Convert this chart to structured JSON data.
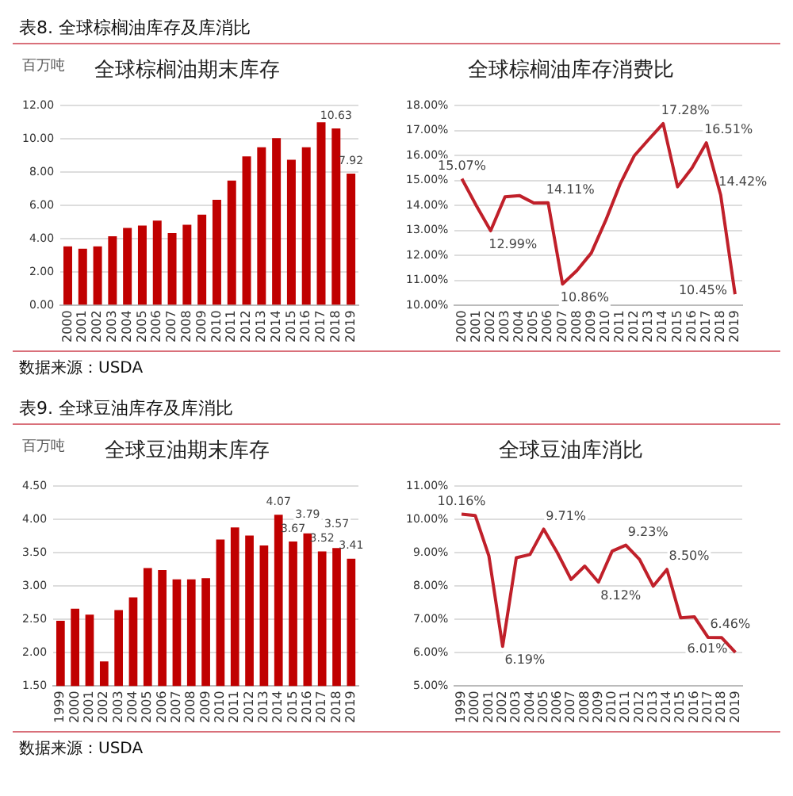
{
  "chart_data": [
    {
      "type": "bar",
      "title": "全球棕榈油期末库存",
      "ylabel": "百万吨",
      "annotations": [
        "表8.  全球棕榈油库存及库消比",
        "数据来源：USDA"
      ],
      "categories": [
        "2000",
        "2001",
        "2002",
        "2003",
        "2004",
        "2005",
        "2006",
        "2007",
        "2008",
        "2009",
        "2010",
        "2011",
        "2012",
        "2013",
        "2014",
        "2015",
        "2016",
        "2017",
        "2018",
        "2019"
      ],
      "values": [
        3.55,
        3.4,
        3.55,
        4.15,
        4.65,
        4.8,
        5.1,
        4.35,
        4.85,
        5.45,
        6.35,
        7.5,
        8.95,
        9.5,
        10.05,
        8.75,
        9.5,
        11.0,
        10.63,
        7.92
      ],
      "value_labels": [
        null,
        null,
        null,
        null,
        null,
        null,
        null,
        null,
        null,
        null,
        null,
        null,
        null,
        null,
        null,
        null,
        null,
        null,
        "10.63",
        "7.92"
      ],
      "color": "#c00000",
      "ylim": [
        0,
        12
      ],
      "yticks": [
        {
          "value": 0,
          "label": "0.00"
        },
        {
          "value": 2,
          "label": "2.00"
        },
        {
          "value": 4,
          "label": "4.00"
        },
        {
          "value": 6,
          "label": "6.00"
        },
        {
          "value": 8,
          "label": "8.00"
        },
        {
          "value": 10,
          "label": "10.00"
        },
        {
          "value": 12,
          "label": "12.00"
        }
      ],
      "grid": "y"
    },
    {
      "type": "line",
      "title": "全球棕榈油库存消费比",
      "categories": [
        "2000",
        "2001",
        "2002",
        "2003",
        "2004",
        "2005",
        "2006",
        "2007",
        "2008",
        "2009",
        "2010",
        "2011",
        "2012",
        "2013",
        "2014",
        "2015",
        "2016",
        "2017",
        "2018",
        "2019"
      ],
      "values": [
        15.07,
        14.0,
        12.99,
        14.35,
        14.4,
        14.1,
        14.11,
        10.86,
        11.4,
        12.1,
        13.4,
        14.85,
        16.0,
        16.65,
        17.28,
        14.75,
        15.5,
        16.51,
        14.42,
        10.45
      ],
      "value_labels": [
        "15.07%",
        null,
        "12.99%",
        null,
        null,
        null,
        "14.11%",
        "10.86%",
        null,
        null,
        null,
        null,
        null,
        null,
        "17.28%",
        null,
        null,
        "16.51%",
        "14.42%",
        "10.45%"
      ],
      "color": "#c0202a",
      "ylim": [
        10,
        18
      ],
      "yticks": [
        {
          "value": 10,
          "label": "10.00%"
        },
        {
          "value": 11,
          "label": "11.00%"
        },
        {
          "value": 12,
          "label": "12.00%"
        },
        {
          "value": 13,
          "label": "13.00%"
        },
        {
          "value": 14,
          "label": "14.00%"
        },
        {
          "value": 15,
          "label": "15.00%"
        },
        {
          "value": 16,
          "label": "16.00%"
        },
        {
          "value": 17,
          "label": "17.00%"
        },
        {
          "value": 18,
          "label": "18.00%"
        }
      ],
      "grid": "y",
      "marker": "none"
    },
    {
      "type": "bar",
      "title": "全球豆油期末库存",
      "ylabel": "百万吨",
      "annotations": [
        "表9.  全球豆油库存及库消比",
        "数据来源：USDA"
      ],
      "categories": [
        "1999",
        "2000",
        "2001",
        "2002",
        "2003",
        "2004",
        "2005",
        "2006",
        "2007",
        "2008",
        "2009",
        "2010",
        "2011",
        "2012",
        "2013",
        "2014",
        "2015",
        "2016",
        "2017",
        "2018",
        "2019"
      ],
      "values": [
        2.48,
        2.66,
        2.57,
        1.87,
        2.64,
        2.83,
        3.27,
        3.24,
        3.1,
        3.1,
        3.12,
        3.7,
        3.88,
        3.76,
        3.61,
        4.07,
        3.67,
        3.79,
        3.52,
        3.57,
        3.41
      ],
      "value_labels": [
        null,
        null,
        null,
        null,
        null,
        null,
        null,
        null,
        null,
        null,
        null,
        null,
        null,
        null,
        null,
        "4.07",
        "3.67",
        "3.79",
        "3.52",
        "3.57",
        "3.41"
      ],
      "color": "#c00000",
      "ylim": [
        1.5,
        4.5
      ],
      "yticks": [
        {
          "value": 1.5,
          "label": "1.50"
        },
        {
          "value": 2,
          "label": "2.00"
        },
        {
          "value": 2.5,
          "label": "2.50"
        },
        {
          "value": 3,
          "label": "3.00"
        },
        {
          "value": 3.5,
          "label": "3.50"
        },
        {
          "value": 4,
          "label": "4.00"
        },
        {
          "value": 4.5,
          "label": "4.50"
        }
      ],
      "grid": "y"
    },
    {
      "type": "line",
      "title": "全球豆油库消比",
      "categories": [
        "1999",
        "2000",
        "2001",
        "2002",
        "2003",
        "2004",
        "2005",
        "2006",
        "2007",
        "2008",
        "2009",
        "2010",
        "2011",
        "2012",
        "2013",
        "2014",
        "2015",
        "2016",
        "2017",
        "2018",
        "2019"
      ],
      "values": [
        10.16,
        10.12,
        8.9,
        6.19,
        8.85,
        8.95,
        9.71,
        9.0,
        8.2,
        8.6,
        8.12,
        9.05,
        9.23,
        8.8,
        8.0,
        8.5,
        7.05,
        7.08,
        6.46,
        6.45,
        6.01
      ],
      "value_labels": [
        "10.16%",
        null,
        null,
        "6.19%",
        null,
        null,
        "9.71%",
        null,
        null,
        null,
        "8.12%",
        null,
        "9.23%",
        null,
        null,
        "8.50%",
        null,
        null,
        "6.46%",
        null,
        "6.01%"
      ],
      "color": "#c0202a",
      "ylim": [
        5,
        11
      ],
      "yticks": [
        {
          "value": 5,
          "label": "5.00%"
        },
        {
          "value": 6,
          "label": "6.00%"
        },
        {
          "value": 7,
          "label": "7.00%"
        },
        {
          "value": 8,
          "label": "8.00%"
        },
        {
          "value": 9,
          "label": "9.00%"
        },
        {
          "value": 10,
          "label": "10.00%"
        },
        {
          "value": 11,
          "label": "11.00%"
        }
      ],
      "grid": "y",
      "marker": "none"
    }
  ]
}
